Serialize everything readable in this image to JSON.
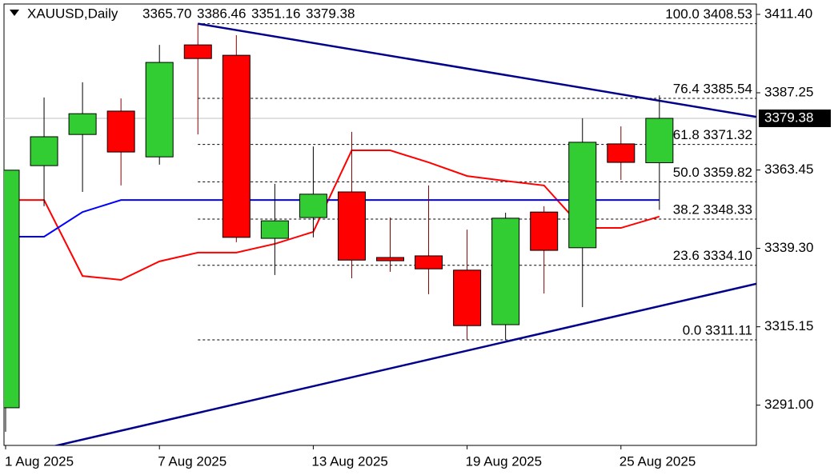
{
  "chart_data": {
    "type": "candlestick",
    "header": {
      "symbol": "XAUUSD,Daily",
      "ohlc_labels": [
        "3365.70",
        "3386.46",
        "3351.16",
        "3379.38"
      ]
    },
    "categories": [
      "1 Aug 2025",
      null,
      null,
      null,
      "7 Aug 2025",
      null,
      null,
      null,
      "13 Aug 2025",
      null,
      null,
      null,
      "19 Aug 2025",
      null,
      null,
      null,
      "25 Aug 2025",
      null
    ],
    "open": [
      3290.2,
      3364.8,
      3374.4,
      3381.6,
      3367.5,
      3402.0,
      3398.8,
      3342.4,
      3348.8,
      3356.7,
      3336.5,
      3337.0,
      3332.6,
      3315.8,
      3350.5,
      3339.5,
      3371.5,
      3365.7
    ],
    "high": [
      3363.4,
      3385.8,
      3390.5,
      3385.5,
      3402.0,
      3408.53,
      3405.0,
      3359.2,
      3370.7,
      3375.2,
      3348.8,
      3358.7,
      3345.1,
      3350.3,
      3352.3,
      3379.4,
      3376.9,
      3386.46
    ],
    "low": [
      3282.8,
      3352.3,
      3356.7,
      3358.7,
      3365.1,
      3374.4,
      3341.2,
      3331.1,
      3342.7,
      3330.1,
      3332.1,
      3325.2,
      3311.11,
      3311.1,
      3325.4,
      3321.2,
      3360.4,
      3351.16
    ],
    "close": [
      3363.4,
      3373.7,
      3380.8,
      3369.0,
      3396.6,
      3397.8,
      3342.7,
      3347.8,
      3356.0,
      3335.7,
      3335.5,
      3333.0,
      3315.5,
      3348.6,
      3338.7,
      3372.0,
      3365.8,
      3379.38
    ],
    "up_color": "#32cd32",
    "down_color": "#ff0000",
    "lines": [
      {
        "color": "#ff0000",
        "values": [
          3354.2,
          3354.2,
          3330.8,
          3329.6,
          3335.3,
          3338.0,
          3338.0,
          3340.7,
          3344.4,
          3369.5,
          3369.5,
          3365.8,
          3361.6,
          3360.1,
          3358.7,
          3345.6,
          3345.6,
          3349.1
        ]
      },
      {
        "color": "#0000ff",
        "values": [
          3342.9,
          3342.9,
          3350.5,
          3354.2,
          3354.2,
          3354.2,
          3354.2,
          3354.2,
          3354.2,
          3354.2,
          3354.2,
          3354.2,
          3354.2,
          3354.2,
          3354.2,
          3354.2,
          3354.2,
          3354.2
        ]
      }
    ],
    "trendlines": [
      {
        "color": "#00008b",
        "points": [
          [
            5,
            3408.53
          ],
          [
            17,
            3384.8
          ]
        ]
      },
      {
        "color": "#00008b",
        "points": [
          [
            7,
            3294.1
          ],
          [
            17,
            3321.5
          ]
        ]
      }
    ],
    "fib_levels": [
      {
        "value": 3408.53,
        "label": "100.0 3408.53"
      },
      {
        "value": 3385.54,
        "label": "76.4 3385.54"
      },
      {
        "value": 3371.32,
        "label": "61.8 3371.32"
      },
      {
        "value": 3359.82,
        "label": "50.0 3359.82"
      },
      {
        "value": 3348.33,
        "label": "38.2 3348.33"
      },
      {
        "value": 3334.1,
        "label": "23.6 3334.10"
      },
      {
        "value": 3311.11,
        "label": "0.0 3311.11"
      }
    ],
    "last_price": {
      "value": 3379.38,
      "label": "3379.38"
    },
    "ylim": [
      3278.6,
      3414.6
    ],
    "yticks": [
      {
        "value": 3411.4,
        "label": "3411.40"
      },
      {
        "value": 3387.25,
        "label": "3387.25"
      },
      {
        "value": 3363.45,
        "label": "3363.45"
      },
      {
        "value": 3339.3,
        "label": "3339.30"
      },
      {
        "value": 3315.15,
        "label": "3315.15"
      },
      {
        "value": 3291.0,
        "label": "3291.00"
      }
    ]
  }
}
